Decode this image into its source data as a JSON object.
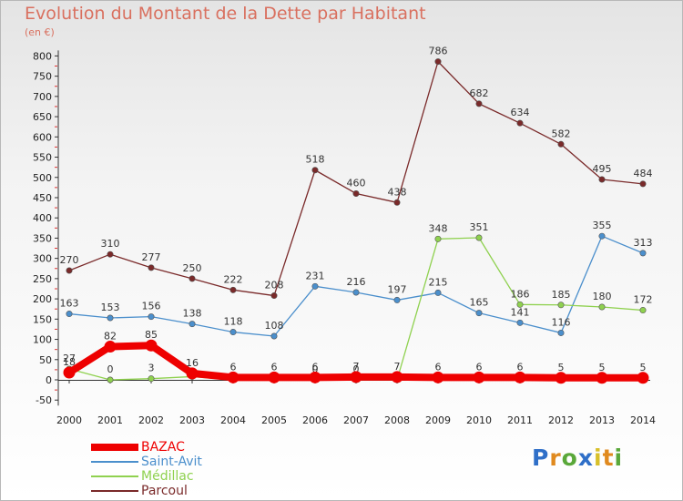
{
  "title": "Evolution du Montant de la Dette par Habitant",
  "subtitle": "(en €)",
  "logo": {
    "letters": [
      "P",
      "r",
      "o",
      "x",
      "i",
      "t",
      "i"
    ],
    "colors": [
      "#2f6fc8",
      "#e08a1f",
      "#5aa83a",
      "#2f6fc8",
      "#d8c02a",
      "#e08a1f",
      "#5aa83a"
    ]
  },
  "chart_data": {
    "type": "line",
    "x": [
      "2000",
      "2001",
      "2002",
      "2003",
      "2004",
      "2005",
      "2006",
      "2007",
      "2008",
      "2009",
      "2010",
      "2011",
      "2012",
      "2013",
      "2014"
    ],
    "yticks": [
      "-50",
      "0",
      "50",
      "100",
      "150",
      "200",
      "250",
      "300",
      "350",
      "400",
      "450",
      "500",
      "550",
      "600",
      "650",
      "700",
      "750",
      "800"
    ],
    "ylim": [
      -50,
      800
    ],
    "grid": false,
    "legend": "bottom-left",
    "series": [
      {
        "name": "Parcoul",
        "color": "#7a2a2a",
        "values": [
          270,
          310,
          277,
          250,
          222,
          208,
          518,
          460,
          438,
          786,
          682,
          634,
          582,
          495,
          484
        ],
        "labels": [
          "270",
          "310",
          "277",
          "250",
          "222",
          "208",
          "518",
          "460",
          "438",
          "786",
          "682",
          "634",
          "582",
          "495",
          "484"
        ]
      },
      {
        "name": "Saint-Avit",
        "color": "#4b8fcc",
        "values": [
          163,
          153,
          156,
          138,
          118,
          108,
          231,
          216,
          197,
          215,
          165,
          141,
          116,
          355,
          313
        ],
        "labels": [
          "163",
          "153",
          "156",
          "138",
          "118",
          "108",
          "231",
          "216",
          "197",
          "215",
          "165",
          "141",
          "116",
          "355",
          "313"
        ]
      },
      {
        "name": "Médillac",
        "color": "#8fd14f",
        "values": [
          27,
          0,
          3,
          8,
          0,
          0,
          0,
          0,
          0,
          348,
          351,
          186,
          185,
          180,
          172
        ],
        "labels": [
          "27",
          "0",
          "3",
          "",
          "",
          "",
          "0",
          "0",
          "",
          "348",
          "351",
          "186",
          "185",
          "180",
          "172"
        ]
      },
      {
        "name": "BAZAC",
        "color": "#ee0000",
        "values": [
          18,
          82,
          85,
          16,
          6,
          6,
          6,
          7,
          7,
          6,
          6,
          6,
          5,
          5,
          5
        ],
        "labels": [
          "18",
          "82",
          "85",
          "16",
          "6",
          "6",
          "6",
          "7",
          "7",
          "6",
          "6",
          "6",
          "5",
          "5",
          "5"
        ]
      }
    ]
  },
  "legend_items": [
    {
      "label": "BAZAC",
      "color": "#ee0000",
      "thick": true
    },
    {
      "label": "Saint-Avit",
      "color": "#4b8fcc",
      "thick": false
    },
    {
      "label": "Médillac",
      "color": "#8fd14f",
      "thick": false
    },
    {
      "label": "Parcoul",
      "color": "#7a2a2a",
      "thick": false
    }
  ]
}
